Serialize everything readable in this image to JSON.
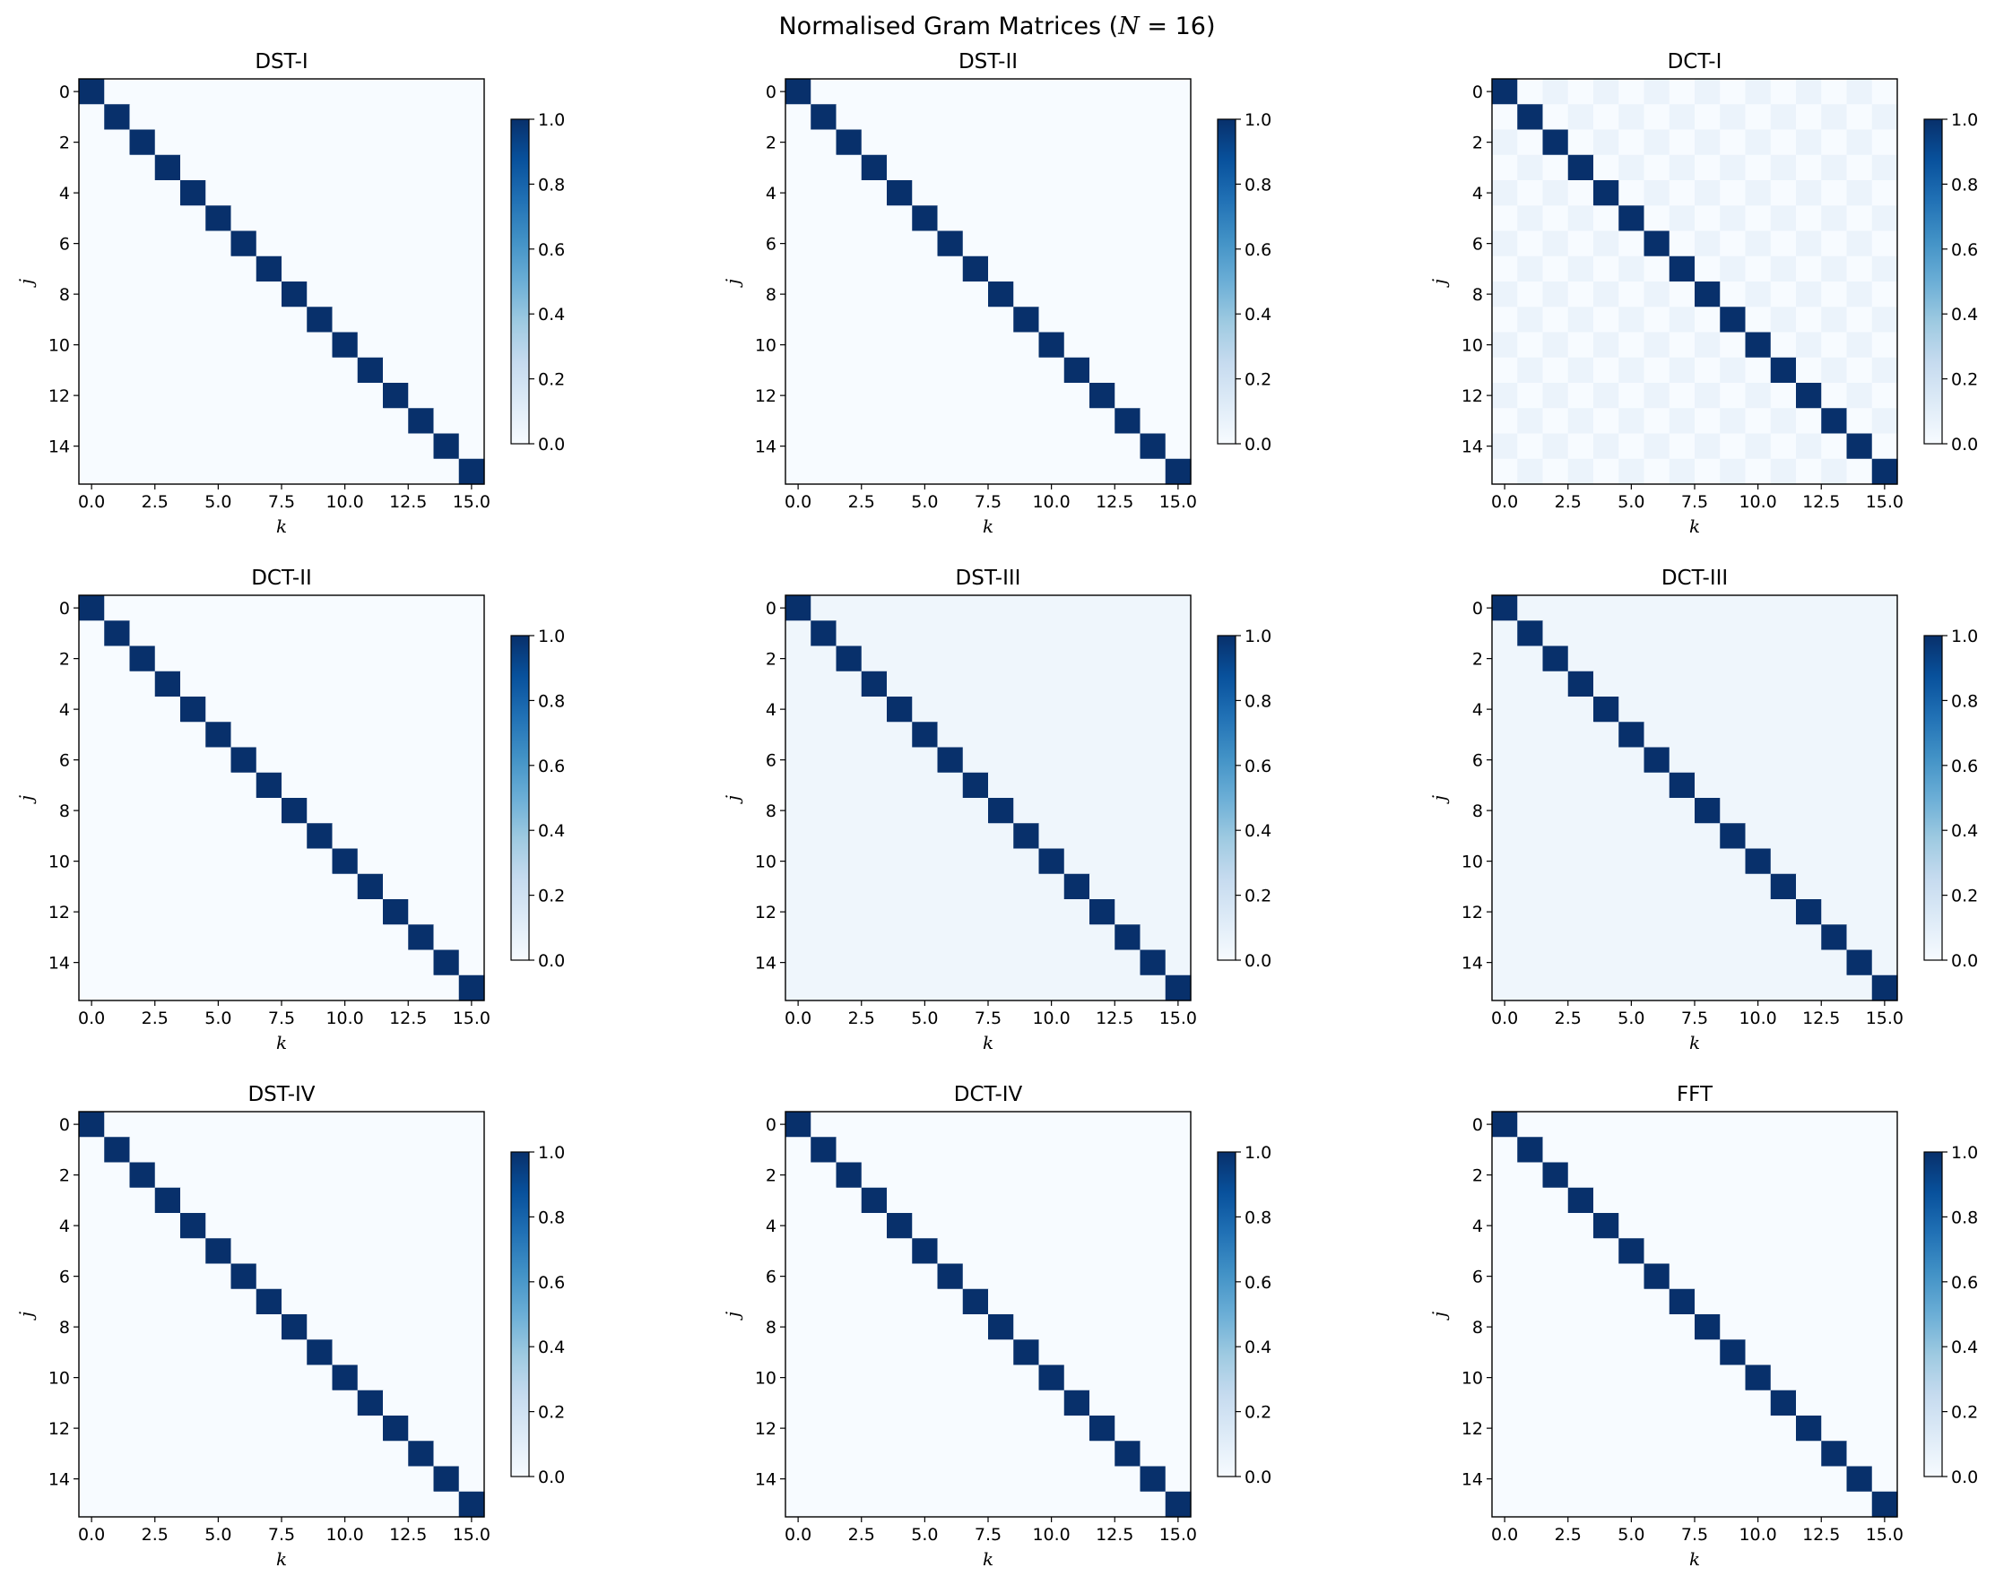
{
  "suptitle": "Normalised Gram Matrices (N = 16)",
  "colors": {
    "cmap_low": "#f7fbff",
    "cmap_mid": "#6baed6",
    "cmap_high": "#08306b"
  },
  "chart_data": [
    {
      "type": "heatmap",
      "title": "DST-I",
      "N": 16,
      "xlabel": "k",
      "ylabel": "j",
      "diagonal": 1.0,
      "offdiag_even": 0.0,
      "offdiag_odd": 0.0,
      "vmin": 0.0,
      "vmax": 1.0,
      "xticks": [
        "0.0",
        "2.5",
        "5.0",
        "7.5",
        "10.0",
        "12.5",
        "15.0"
      ],
      "yticks": [
        "0",
        "2",
        "4",
        "6",
        "8",
        "10",
        "12",
        "14"
      ],
      "cbar_ticks": [
        "0.0",
        "0.2",
        "0.4",
        "0.6",
        "0.8",
        "1.0"
      ]
    },
    {
      "type": "heatmap",
      "title": "DST-II",
      "N": 16,
      "xlabel": "k",
      "ylabel": "j",
      "diagonal": 1.0,
      "offdiag_even": 0.0,
      "offdiag_odd": 0.0,
      "vmin": 0.0,
      "vmax": 1.0,
      "xticks": [
        "0.0",
        "2.5",
        "5.0",
        "7.5",
        "10.0",
        "12.5",
        "15.0"
      ],
      "yticks": [
        "0",
        "2",
        "4",
        "6",
        "8",
        "10",
        "12",
        "14"
      ],
      "cbar_ticks": [
        "0.0",
        "0.2",
        "0.4",
        "0.6",
        "0.8",
        "1.0"
      ]
    },
    {
      "type": "heatmap",
      "title": "DCT-I",
      "N": 16,
      "xlabel": "k",
      "ylabel": "j",
      "diagonal": 1.0,
      "offdiag_even": 0.06,
      "offdiag_odd": 0.0,
      "vmin": 0.0,
      "vmax": 1.0,
      "xticks": [
        "0.0",
        "2.5",
        "5.0",
        "7.5",
        "10.0",
        "12.5",
        "15.0"
      ],
      "yticks": [
        "0",
        "2",
        "4",
        "6",
        "8",
        "10",
        "12",
        "14"
      ],
      "cbar_ticks": [
        "0.0",
        "0.2",
        "0.4",
        "0.6",
        "0.8",
        "1.0"
      ]
    },
    {
      "type": "heatmap",
      "title": "DCT-II",
      "N": 16,
      "xlabel": "k",
      "ylabel": "j",
      "diagonal": 1.0,
      "offdiag_even": 0.0,
      "offdiag_odd": 0.0,
      "vmin": 0.0,
      "vmax": 1.0,
      "xticks": [
        "0.0",
        "2.5",
        "5.0",
        "7.5",
        "10.0",
        "12.5",
        "15.0"
      ],
      "yticks": [
        "0",
        "2",
        "4",
        "6",
        "8",
        "10",
        "12",
        "14"
      ],
      "cbar_ticks": [
        "0.0",
        "0.2",
        "0.4",
        "0.6",
        "0.8",
        "1.0"
      ]
    },
    {
      "type": "heatmap",
      "title": "DST-III",
      "N": 16,
      "xlabel": "k",
      "ylabel": "j",
      "diagonal": 1.0,
      "offdiag_even": 0.04,
      "offdiag_odd": 0.04,
      "vmin": 0.0,
      "vmax": 1.0,
      "xticks": [
        "0.0",
        "2.5",
        "5.0",
        "7.5",
        "10.0",
        "12.5",
        "15.0"
      ],
      "yticks": [
        "0",
        "2",
        "4",
        "6",
        "8",
        "10",
        "12",
        "14"
      ],
      "cbar_ticks": [
        "0.0",
        "0.2",
        "0.4",
        "0.6",
        "0.8",
        "1.0"
      ]
    },
    {
      "type": "heatmap",
      "title": "DCT-III",
      "N": 16,
      "xlabel": "k",
      "ylabel": "j",
      "diagonal": 1.0,
      "offdiag_even": 0.04,
      "offdiag_odd": 0.04,
      "vmin": 0.0,
      "vmax": 1.0,
      "xticks": [
        "0.0",
        "2.5",
        "5.0",
        "7.5",
        "10.0",
        "12.5",
        "15.0"
      ],
      "yticks": [
        "0",
        "2",
        "4",
        "6",
        "8",
        "10",
        "12",
        "14"
      ],
      "cbar_ticks": [
        "0.0",
        "0.2",
        "0.4",
        "0.6",
        "0.8",
        "1.0"
      ]
    },
    {
      "type": "heatmap",
      "title": "DST-IV",
      "N": 16,
      "xlabel": "k",
      "ylabel": "j",
      "diagonal": 1.0,
      "offdiag_even": 0.0,
      "offdiag_odd": 0.0,
      "vmin": 0.0,
      "vmax": 1.0,
      "xticks": [
        "0.0",
        "2.5",
        "5.0",
        "7.5",
        "10.0",
        "12.5",
        "15.0"
      ],
      "yticks": [
        "0",
        "2",
        "4",
        "6",
        "8",
        "10",
        "12",
        "14"
      ],
      "cbar_ticks": [
        "0.0",
        "0.2",
        "0.4",
        "0.6",
        "0.8",
        "1.0"
      ]
    },
    {
      "type": "heatmap",
      "title": "DCT-IV",
      "N": 16,
      "xlabel": "k",
      "ylabel": "j",
      "diagonal": 1.0,
      "offdiag_even": 0.0,
      "offdiag_odd": 0.0,
      "vmin": 0.0,
      "vmax": 1.0,
      "xticks": [
        "0.0",
        "2.5",
        "5.0",
        "7.5",
        "10.0",
        "12.5",
        "15.0"
      ],
      "yticks": [
        "0",
        "2",
        "4",
        "6",
        "8",
        "10",
        "12",
        "14"
      ],
      "cbar_ticks": [
        "0.0",
        "0.2",
        "0.4",
        "0.6",
        "0.8",
        "1.0"
      ]
    },
    {
      "type": "heatmap",
      "title": "FFT",
      "N": 16,
      "xlabel": "k",
      "ylabel": "j",
      "diagonal": 1.0,
      "offdiag_even": 0.0,
      "offdiag_odd": 0.0,
      "vmin": 0.0,
      "vmax": 1.0,
      "xticks": [
        "0.0",
        "2.5",
        "5.0",
        "7.5",
        "10.0",
        "12.5",
        "15.0"
      ],
      "yticks": [
        "0",
        "2",
        "4",
        "6",
        "8",
        "10",
        "12",
        "14"
      ],
      "cbar_ticks": [
        "0.0",
        "0.2",
        "0.4",
        "0.6",
        "0.8",
        "1.0"
      ]
    }
  ]
}
